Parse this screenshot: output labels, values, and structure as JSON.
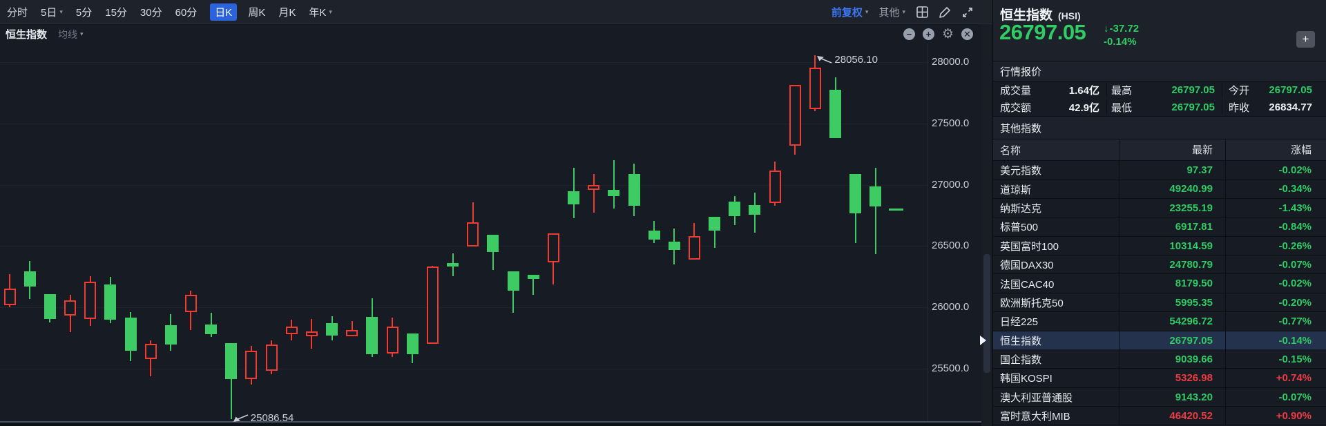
{
  "toolbar": {
    "periods": [
      {
        "label": "分时"
      },
      {
        "label": "5日",
        "caret": true
      },
      {
        "label": "5分"
      },
      {
        "label": "15分"
      },
      {
        "label": "30分"
      },
      {
        "label": "60分"
      },
      {
        "label": "日K",
        "selected": true
      },
      {
        "label": "周K"
      },
      {
        "label": "月K"
      },
      {
        "label": "年K",
        "caret": true
      }
    ],
    "adjust_label": "前复权",
    "more_label": "其他",
    "icons": [
      "layout-grid-icon",
      "draw-tool-icon",
      "fullscreen-icon"
    ]
  },
  "chart_header": {
    "title": "恒生指数",
    "ma_label": "均线"
  },
  "chart_controls": {
    "icons": [
      "zoom-out-icon",
      "zoom-in-icon",
      "settings-gear-icon",
      "close-chart-icon"
    ]
  },
  "chart_data": {
    "type": "candlestick",
    "title": "恒生指数 日K",
    "y_ticks": [
      "28000.0",
      "27500.0",
      "27000.0",
      "26500.0",
      "26000.0",
      "25500.0"
    ],
    "grid": true,
    "colors": {
      "up": "#ef3b32",
      "down": "#3ecb63"
    },
    "annotations": [
      {
        "label": "28056.10",
        "candle_index": 40,
        "type": "high"
      },
      {
        "label": "25086.54",
        "candle_index": 11,
        "type": "low"
      }
    ],
    "candles_ohlc": [
      [
        26018,
        26272,
        26001,
        26153
      ],
      [
        26294,
        26378,
        26069,
        26170
      ],
      [
        26108,
        26108,
        25877,
        25906
      ],
      [
        25934,
        26103,
        25799,
        26058
      ],
      [
        25906,
        26255,
        25849,
        26210
      ],
      [
        26187,
        26249,
        25872,
        25900
      ],
      [
        25917,
        25962,
        25562,
        25647
      ],
      [
        25579,
        25731,
        25438,
        25703
      ],
      [
        25855,
        25945,
        25647,
        25697
      ],
      [
        25962,
        26136,
        25816,
        26103
      ],
      [
        25861,
        25956,
        25760,
        25782
      ],
      [
        25709,
        25709,
        25086.54,
        25416
      ],
      [
        25416,
        25686,
        25371,
        25647
      ],
      [
        25483,
        25731,
        25455,
        25697
      ],
      [
        25782,
        25900,
        25731,
        25844
      ],
      [
        25765,
        25906,
        25664,
        25805
      ],
      [
        25872,
        25928,
        25731,
        25771
      ],
      [
        25765,
        25889,
        25765,
        25816
      ],
      [
        25923,
        26075,
        25596,
        25619
      ],
      [
        25625,
        25917,
        25596,
        25844
      ],
      [
        25788,
        25788,
        25546,
        25619
      ],
      [
        25703,
        26340,
        25700,
        26334
      ],
      [
        26362,
        26441,
        26255,
        26334
      ],
      [
        26497,
        26857,
        26497,
        26694
      ],
      [
        26593,
        26593,
        26305,
        26452
      ],
      [
        26294,
        26294,
        25956,
        26136
      ],
      [
        26266,
        26266,
        26103,
        26232
      ],
      [
        26368,
        26604,
        26187,
        26604
      ],
      [
        26947,
        27139,
        26728,
        26840
      ],
      [
        26959,
        27088,
        26773,
        26998
      ],
      [
        26959,
        27200,
        26807,
        26908
      ],
      [
        27088,
        27172,
        26745,
        26829
      ],
      [
        26626,
        26705,
        26525,
        26553
      ],
      [
        26536,
        26643,
        26350,
        26469
      ],
      [
        26390,
        26688,
        26390,
        26581
      ],
      [
        26739,
        26739,
        26486,
        26626
      ],
      [
        26863,
        26908,
        26671,
        26745
      ],
      [
        26835,
        26936,
        26609,
        26756
      ],
      [
        26851,
        27189,
        26829,
        27116
      ],
      [
        27319,
        27814,
        27246,
        27814
      ],
      [
        27617,
        28056.1,
        27600,
        27955
      ],
      [
        27775,
        27876,
        27381,
        27381
      ],
      [
        27088,
        27088,
        26525,
        26767
      ],
      [
        26987,
        27139,
        26435,
        26823
      ],
      [
        26797.05,
        26797.05,
        26797.05,
        26797.05
      ]
    ]
  },
  "panel": {
    "title": "恒生指数",
    "symbol": "(HSI)",
    "price": "26797.05",
    "change": "-37.72",
    "change_pct": "-0.14%",
    "direction": "down",
    "add_button": "+",
    "sections": {
      "quote": "行情报价",
      "indices": "其他指数"
    },
    "quote_rows": [
      [
        {
          "label": "成交量",
          "value": "1.64亿",
          "color": "white"
        },
        {
          "label": "最高",
          "value": "26797.05",
          "color": "green"
        },
        {
          "label": "今开",
          "value": "26797.05",
          "color": "green"
        }
      ],
      [
        {
          "label": "成交额",
          "value": "42.9亿",
          "color": "white"
        },
        {
          "label": "最低",
          "value": "26797.05",
          "color": "green"
        },
        {
          "label": "昨收",
          "value": "26834.77",
          "color": "white"
        }
      ]
    ],
    "table": {
      "headers": [
        "名称",
        "最新",
        "涨幅"
      ],
      "rows": [
        {
          "name": "美元指数",
          "last": "97.37",
          "chg": "-0.02%",
          "color": "green"
        },
        {
          "name": "道琼斯",
          "last": "49240.99",
          "chg": "-0.34%",
          "color": "green"
        },
        {
          "name": "纳斯达克",
          "last": "23255.19",
          "chg": "-1.43%",
          "color": "green"
        },
        {
          "name": "标普500",
          "last": "6917.81",
          "chg": "-0.84%",
          "color": "green"
        },
        {
          "name": "英国富时100",
          "last": "10314.59",
          "chg": "-0.26%",
          "color": "green"
        },
        {
          "name": "德国DAX30",
          "last": "24780.79",
          "chg": "-0.07%",
          "color": "green"
        },
        {
          "name": "法国CAC40",
          "last": "8179.50",
          "chg": "-0.02%",
          "color": "green"
        },
        {
          "name": "欧洲斯托克50",
          "last": "5995.35",
          "chg": "-0.20%",
          "color": "green"
        },
        {
          "name": "日经225",
          "last": "54296.72",
          "chg": "-0.77%",
          "color": "green"
        },
        {
          "name": "恒生指数",
          "last": "26797.05",
          "chg": "-0.14%",
          "color": "green",
          "selected": true
        },
        {
          "name": "国企指数",
          "last": "9039.66",
          "chg": "-0.15%",
          "color": "green"
        },
        {
          "name": "韩国KOSPI",
          "last": "5326.98",
          "chg": "+0.74%",
          "color": "red"
        },
        {
          "name": "澳大利亚普通股",
          "last": "9143.20",
          "chg": "-0.07%",
          "color": "green"
        },
        {
          "name": "富时意大利MIB",
          "last": "46420.52",
          "chg": "+0.90%",
          "color": "red"
        }
      ]
    }
  },
  "colors": {
    "up_red": "#ee3a41",
    "down_green": "#2fcb63",
    "accent_blue": "#2a63db"
  }
}
